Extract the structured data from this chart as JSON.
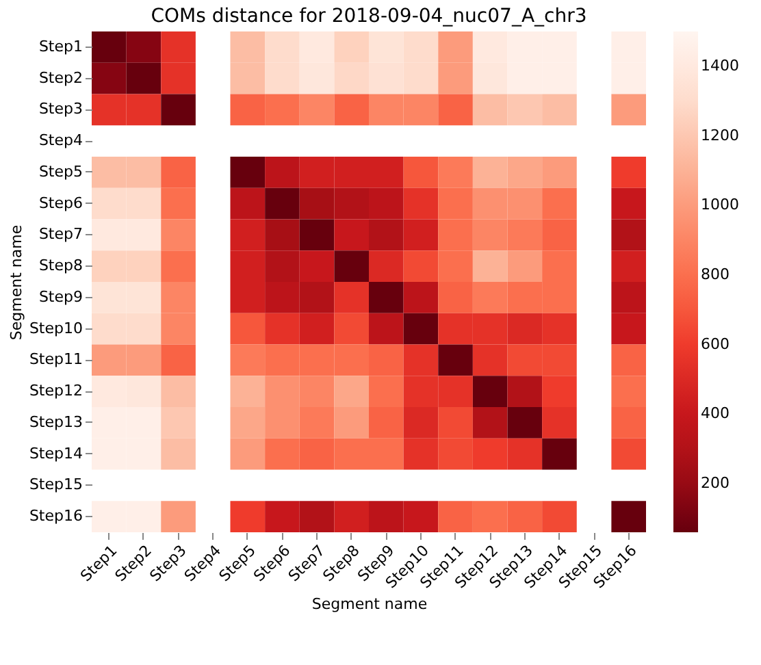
{
  "chart_data": {
    "type": "heatmap",
    "title": "COMs distance for 2018-09-04_nuc07_A_chr3",
    "xlabel": "Segment name",
    "ylabel": "Segment name",
    "categories": [
      "Step1",
      "Step2",
      "Step3",
      "Step4",
      "Step5",
      "Step6",
      "Step7",
      "Step8",
      "Step9",
      "Step10",
      "Step11",
      "Step12",
      "Step13",
      "Step14",
      "Step15",
      "Step16"
    ],
    "y_categories": [
      "Step1",
      "Step2",
      "Step3",
      "Step4",
      "Step5",
      "Step6",
      "Step7",
      "Step8",
      "Step9",
      "Step10",
      "Step11",
      "Step12",
      "Step13",
      "Step14",
      "Step15",
      "Step16"
    ],
    "cells": [
      [
        60,
        150,
        550,
        null,
        1150,
        1300,
        1400,
        1250,
        1350,
        1300,
        1000,
        1400,
        1450,
        1450,
        null,
        1450
      ],
      [
        150,
        60,
        550,
        null,
        1150,
        1300,
        1380,
        1280,
        1330,
        1300,
        1000,
        1380,
        1450,
        1450,
        null,
        1450
      ],
      [
        550,
        550,
        60,
        null,
        750,
        800,
        900,
        750,
        900,
        900,
        750,
        1150,
        1200,
        1150,
        null,
        1000
      ],
      [
        null,
        null,
        null,
        null,
        null,
        null,
        null,
        null,
        null,
        null,
        null,
        null,
        null,
        null,
        null,
        null
      ],
      [
        1150,
        1150,
        750,
        null,
        60,
        350,
        450,
        450,
        450,
        700,
        850,
        1100,
        1050,
        1000,
        null,
        600
      ],
      [
        1300,
        1300,
        800,
        null,
        350,
        60,
        250,
        300,
        350,
        550,
        800,
        950,
        950,
        800,
        null,
        400
      ],
      [
        1400,
        1400,
        900,
        null,
        450,
        250,
        60,
        400,
        300,
        450,
        800,
        900,
        850,
        750,
        null,
        300
      ],
      [
        1250,
        1250,
        800,
        null,
        450,
        300,
        400,
        60,
        500,
        650,
        800,
        1100,
        1000,
        800,
        null,
        450
      ],
      [
        1350,
        1350,
        900,
        null,
        450,
        350,
        300,
        550,
        60,
        350,
        750,
        850,
        800,
        800,
        null,
        350
      ],
      [
        1300,
        1300,
        900,
        null,
        700,
        550,
        450,
        650,
        350,
        60,
        550,
        550,
        500,
        550,
        null,
        400
      ],
      [
        1000,
        1000,
        750,
        null,
        850,
        800,
        800,
        800,
        750,
        550,
        60,
        550,
        650,
        650,
        null,
        750
      ],
      [
        1400,
        1380,
        1150,
        null,
        1100,
        950,
        900,
        1050,
        800,
        550,
        550,
        60,
        300,
        600,
        null,
        800
      ],
      [
        1450,
        1450,
        1200,
        null,
        1050,
        950,
        850,
        1000,
        750,
        500,
        650,
        300,
        60,
        550,
        null,
        750
      ],
      [
        1450,
        1450,
        1150,
        null,
        1000,
        800,
        750,
        800,
        800,
        550,
        650,
        600,
        550,
        60,
        null,
        650
      ],
      [
        null,
        null,
        null,
        null,
        null,
        null,
        null,
        null,
        null,
        null,
        null,
        null,
        null,
        null,
        null,
        null
      ],
      [
        1450,
        1450,
        1000,
        null,
        600,
        400,
        300,
        450,
        350,
        400,
        750,
        800,
        750,
        650,
        null,
        60
      ]
    ],
    "clim": [
      60,
      1500
    ],
    "cticks": [
      200,
      400,
      600,
      800,
      1000,
      1200,
      1400
    ]
  }
}
